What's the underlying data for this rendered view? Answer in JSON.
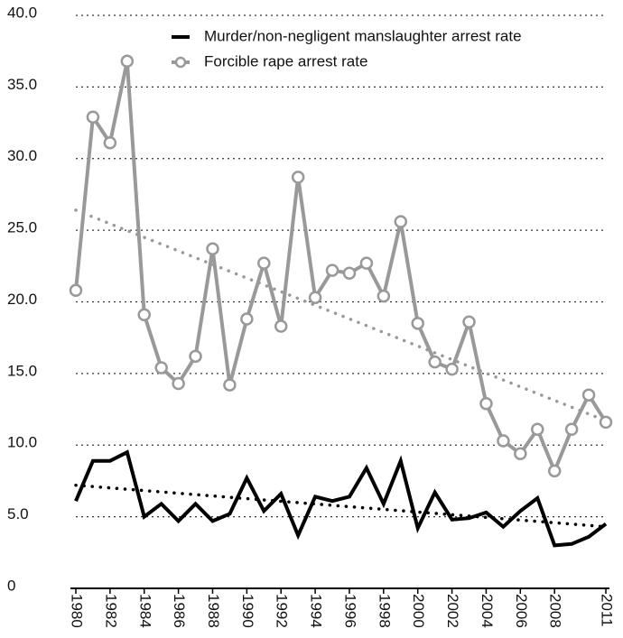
{
  "chart_data": {
    "type": "line",
    "x": [
      1980,
      1981,
      1982,
      1983,
      1984,
      1985,
      1986,
      1987,
      1988,
      1989,
      1990,
      1991,
      1992,
      1993,
      1994,
      1995,
      1996,
      1997,
      1998,
      1999,
      2000,
      2001,
      2002,
      2003,
      2004,
      2005,
      2006,
      2007,
      2008,
      2009,
      2010,
      2011
    ],
    "series": [
      {
        "name": "Murder/non-negligent manslaughter arrest rate",
        "color": "#000000",
        "marker": false,
        "values": [
          6.1,
          8.9,
          8.9,
          9.5,
          5.0,
          5.9,
          4.7,
          5.9,
          4.7,
          5.2,
          7.7,
          5.4,
          6.6,
          3.7,
          6.4,
          6.1,
          6.4,
          8.4,
          5.9,
          8.9,
          4.2,
          6.7,
          4.8,
          4.9,
          5.3,
          4.3,
          5.4,
          6.3,
          3.0,
          3.1,
          3.6,
          4.5
        ],
        "trend": [
          7.2,
          4.3
        ]
      },
      {
        "name": "Forcible rape arrest rate",
        "color": "#999999",
        "marker": true,
        "values": [
          20.8,
          32.9,
          31.1,
          36.8,
          19.1,
          15.4,
          14.3,
          16.2,
          23.7,
          14.2,
          18.8,
          22.7,
          18.3,
          28.7,
          20.3,
          22.2,
          22.0,
          22.7,
          20.4,
          25.6,
          18.5,
          15.8,
          15.3,
          18.6,
          12.9,
          10.3,
          9.4,
          11.1,
          8.2,
          11.1,
          13.5,
          11.6
        ],
        "trend": [
          26.4,
          11.7
        ]
      }
    ],
    "xlim": [
      1980,
      2011
    ],
    "xticks": [
      1980,
      1982,
      1984,
      1986,
      1988,
      1990,
      1992,
      1994,
      1996,
      1998,
      2000,
      2002,
      2004,
      2006,
      2008,
      2011
    ],
    "ylim": [
      0,
      40
    ],
    "yticks": [
      0,
      {
        "value": 5,
        "label": "5.0"
      },
      {
        "value": 10,
        "label": "10.0"
      },
      {
        "value": 15,
        "label": "15.0"
      },
      {
        "value": 20,
        "label": "20.0"
      },
      {
        "value": 25,
        "label": "25.0"
      },
      {
        "value": 30,
        "label": "30.0"
      },
      {
        "value": 35,
        "label": "35.0"
      },
      {
        "value": 40,
        "label": "40.0"
      }
    ],
    "grid": true,
    "legend": "upper right"
  }
}
